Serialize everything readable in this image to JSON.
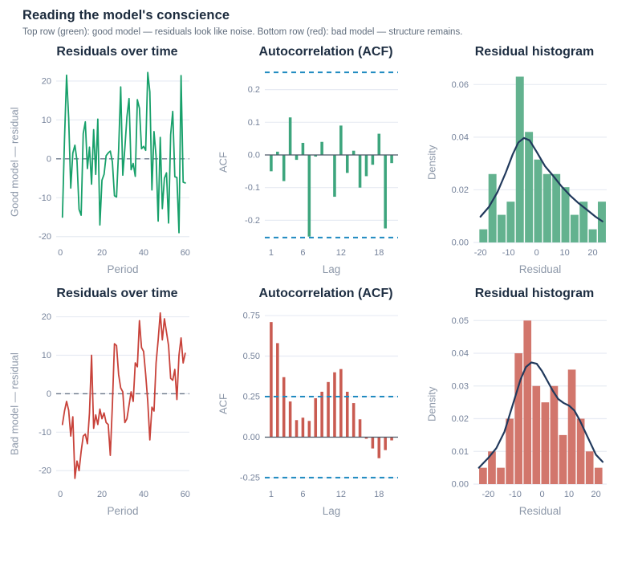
{
  "header": {
    "title": "Reading the model's conscience",
    "subtitle": "Top row (green): good model — residuals look like noise. Bottom row (red): bad model — structure remains."
  },
  "colors": {
    "title": "#1e2e42",
    "subtitle": "#5f6c7c",
    "grid": "#e7ebf3",
    "tick": "#76839b",
    "axis_label": "#8d98a9",
    "navy_curve": "#21395c",
    "blue_conf_dash": "#1f8ac0",
    "zero_dash_gray": "#6d7a8b",
    "zero_axis_solid": "#4d5866",
    "green_line": "#17a06a",
    "green_bar": "#3da57d",
    "green_hist": "#63b28f",
    "red_line": "#c8423a",
    "red_bar": "#c95b51",
    "red_hist": "#d2766c"
  },
  "chart_data": [
    {
      "id": "good-residuals-line",
      "type": "line",
      "title": "Residuals over time",
      "ylabel": "Good model — residual",
      "xlabel": "Period",
      "xlim": [
        -2,
        62
      ],
      "ylim": [
        -21.5,
        23.5
      ],
      "xticks": [
        {
          "v": 0,
          "label": "0"
        },
        {
          "v": 20,
          "label": "20"
        },
        {
          "v": 40,
          "label": "40"
        },
        {
          "v": 60,
          "label": "60"
        }
      ],
      "yticks": [
        {
          "v": -20,
          "label": "-20"
        },
        {
          "v": -10,
          "label": "-10"
        },
        {
          "v": 0,
          "label": "0"
        },
        {
          "v": 10,
          "label": "10"
        },
        {
          "v": 20,
          "label": "20"
        }
      ],
      "reflines": [
        {
          "y": 0,
          "color": "#6d7a8b",
          "dash": "6,5",
          "width": 1.4
        }
      ],
      "color_key": "green_line",
      "values": [
        -15,
        5,
        21.5,
        10.5,
        -7.5,
        1.5,
        3.5,
        -0.5,
        -13,
        -14.5,
        6.5,
        9.5,
        -2.5,
        3,
        -6.5,
        7.5,
        -4,
        10.2,
        -17,
        -5.5,
        -4,
        0.8,
        1.5,
        2,
        -0.8,
        -9.5,
        -9.8,
        2.2,
        18.5,
        -4.2,
        2.8,
        10.8,
        15.5,
        -2.8,
        -1.2,
        -4.5,
        15.2,
        13,
        2.6,
        3.2,
        2.2,
        22.2,
        17.2,
        -8,
        7,
        0.6,
        -16,
        5.5,
        -12.8,
        -5,
        -3.6,
        -16.5,
        6.2,
        12.2,
        -4.6,
        -4.8,
        -19,
        21.4,
        -6,
        -6.2
      ]
    },
    {
      "id": "good-acf",
      "type": "bar",
      "title": "Autocorrelation (ACF)",
      "ylabel": "ACF",
      "xlabel": "Lag",
      "xlim": [
        0,
        21
      ],
      "ylim": [
        -0.268,
        0.268
      ],
      "xticks": [
        {
          "v": 1,
          "label": "1"
        },
        {
          "v": 6,
          "label": "6"
        },
        {
          "v": 12,
          "label": "12"
        },
        {
          "v": 18,
          "label": "18"
        }
      ],
      "yticks": [
        {
          "v": -0.2,
          "label": "-0.2"
        },
        {
          "v": -0.1,
          "label": "-0.1"
        },
        {
          "v": 0,
          "label": "0.0"
        },
        {
          "v": 0.1,
          "label": "0.1"
        },
        {
          "v": 0.2,
          "label": "0.2"
        }
      ],
      "reflines": [
        {
          "y": 0.253,
          "color": "#1f8ac0",
          "dash": "6,5",
          "width": 2
        },
        {
          "y": -0.253,
          "color": "#1f8ac0",
          "dash": "6,5",
          "width": 2
        }
      ],
      "zero_axis": true,
      "color_key": "green_bar",
      "values": [
        -0.05,
        0.01,
        -0.08,
        0.115,
        -0.015,
        0.037,
        -0.25,
        -0.005,
        0.04,
        0.0,
        -0.128,
        0.09,
        -0.055,
        0.013,
        -0.1,
        -0.065,
        -0.03,
        0.065,
        -0.225,
        -0.025
      ]
    },
    {
      "id": "good-histogram",
      "type": "histogram",
      "title": "Residual histogram",
      "ylabel": "Density",
      "xlabel": "Residual",
      "xlim": [
        -22.5,
        25
      ],
      "ylim": [
        0,
        0.0665
      ],
      "xticks": [
        {
          "v": -20,
          "label": "-20"
        },
        {
          "v": -10,
          "label": "-10"
        },
        {
          "v": 0,
          "label": "0"
        },
        {
          "v": 10,
          "label": "10"
        },
        {
          "v": 20,
          "label": "20"
        }
      ],
      "yticks": [
        {
          "v": 0,
          "label": "0.00"
        },
        {
          "v": 0.02,
          "label": "0.02"
        },
        {
          "v": 0.04,
          "label": "0.04"
        },
        {
          "v": 0.06,
          "label": "0.06"
        }
      ],
      "bin_start": -20.6,
      "bin_width": 3.25,
      "color_key": "green_hist",
      "heights": [
        0.005,
        0.026,
        0.0105,
        0.0155,
        0.063,
        0.042,
        0.0315,
        0.026,
        0.026,
        0.021,
        0.0105,
        0.0155,
        0.005,
        0.0155
      ],
      "kde": {
        "x": [
          -20,
          -17,
          -14,
          -11,
          -8.5,
          -6.5,
          -4.5,
          -2.5,
          0,
          3,
          6,
          9,
          12,
          15,
          18,
          21,
          23.5
        ],
        "y": [
          0.0098,
          0.0135,
          0.019,
          0.0265,
          0.0335,
          0.038,
          0.0397,
          0.0388,
          0.0345,
          0.029,
          0.0252,
          0.0212,
          0.0178,
          0.0149,
          0.0124,
          0.0098,
          0.008
        ]
      }
    },
    {
      "id": "bad-residuals-line",
      "type": "line",
      "title": "Residuals over time",
      "ylabel": "Bad model — residual",
      "xlabel": "Period",
      "xlim": [
        -2,
        62
      ],
      "ylim": [
        -23.5,
        22
      ],
      "xticks": [
        {
          "v": 0,
          "label": "0"
        },
        {
          "v": 20,
          "label": "20"
        },
        {
          "v": 40,
          "label": "40"
        },
        {
          "v": 60,
          "label": "60"
        }
      ],
      "yticks": [
        {
          "v": -20,
          "label": "-20"
        },
        {
          "v": -10,
          "label": "-10"
        },
        {
          "v": 0,
          "label": "0"
        },
        {
          "v": 10,
          "label": "10"
        },
        {
          "v": 20,
          "label": "20"
        }
      ],
      "reflines": [
        {
          "y": 0,
          "color": "#6d7a8b",
          "dash": "6,5",
          "width": 1.4
        }
      ],
      "color_key": "red_line",
      "values": [
        -8,
        -4.5,
        -2,
        -4.3,
        -11,
        -6,
        -22,
        -17.5,
        -20,
        -15,
        -11,
        -10.5,
        -13,
        -5,
        10,
        -9,
        -5.5,
        -8,
        -4,
        -6.5,
        -5,
        -7.5,
        -8,
        -16,
        -3,
        13,
        12.5,
        5,
        1.5,
        0.5,
        -7.5,
        -6.5,
        -3,
        0.5,
        -2,
        8,
        7,
        19,
        12,
        11,
        5,
        -2,
        -12,
        -3.5,
        -4.5,
        8,
        14,
        21,
        14,
        19.5,
        16,
        12.5,
        4,
        3.5,
        6.3,
        -1.5,
        10,
        14.5,
        8,
        10.5
      ]
    },
    {
      "id": "bad-acf",
      "type": "bar",
      "title": "Autocorrelation (ACF)",
      "ylabel": "ACF",
      "xlabel": "Lag",
      "xlim": [
        0,
        21
      ],
      "ylim": [
        -0.29,
        0.79
      ],
      "xticks": [
        {
          "v": 1,
          "label": "1"
        },
        {
          "v": 6,
          "label": "6"
        },
        {
          "v": 12,
          "label": "12"
        },
        {
          "v": 18,
          "label": "18"
        }
      ],
      "yticks": [
        {
          "v": -0.25,
          "label": "-0.25"
        },
        {
          "v": 0,
          "label": "0.00"
        },
        {
          "v": 0.25,
          "label": "0.25"
        },
        {
          "v": 0.5,
          "label": "0.50"
        },
        {
          "v": 0.75,
          "label": "0.75"
        }
      ],
      "reflines": [
        {
          "y": 0.25,
          "color": "#1f8ac0",
          "dash": "6,5",
          "width": 2
        },
        {
          "y": -0.25,
          "color": "#1f8ac0",
          "dash": "6,5",
          "width": 2
        }
      ],
      "zero_axis": true,
      "color_key": "red_bar",
      "values": [
        0.71,
        0.58,
        0.37,
        0.22,
        0.105,
        0.12,
        0.1,
        0.24,
        0.28,
        0.34,
        0.4,
        0.42,
        0.28,
        0.21,
        0.11,
        -0.01,
        -0.07,
        -0.13,
        -0.08,
        -0.02
      ]
    },
    {
      "id": "bad-histogram",
      "type": "histogram",
      "title": "Residual histogram",
      "ylabel": "Density",
      "xlabel": "Residual",
      "xlim": [
        -25.5,
        24
      ],
      "ylim": [
        0,
        0.0535
      ],
      "xticks": [
        {
          "v": -20,
          "label": "-20"
        },
        {
          "v": -10,
          "label": "-10"
        },
        {
          "v": 0,
          "label": "0"
        },
        {
          "v": 10,
          "label": "10"
        },
        {
          "v": 20,
          "label": "20"
        }
      ],
      "yticks": [
        {
          "v": 0,
          "label": "0.00"
        },
        {
          "v": 0.01,
          "label": "0.01"
        },
        {
          "v": 0.02,
          "label": "0.02"
        },
        {
          "v": 0.03,
          "label": "0.03"
        },
        {
          "v": 0.04,
          "label": "0.04"
        },
        {
          "v": 0.05,
          "label": "0.05"
        }
      ],
      "bin_start": -23.6,
      "bin_width": 3.3,
      "color_key": "red_hist",
      "heights": [
        0.005,
        0.01,
        0.005,
        0.02,
        0.04,
        0.05,
        0.03,
        0.025,
        0.03,
        0.015,
        0.035,
        0.02,
        0.01,
        0.005
      ],
      "kde": {
        "x": [
          -23.5,
          -20,
          -17,
          -14,
          -11,
          -8,
          -6,
          -4,
          -2,
          0,
          2,
          4,
          6,
          8,
          10,
          12,
          14,
          16,
          18,
          20,
          22.5
        ],
        "y": [
          0.005,
          0.008,
          0.011,
          0.016,
          0.024,
          0.032,
          0.0358,
          0.0372,
          0.0368,
          0.0345,
          0.0315,
          0.0285,
          0.026,
          0.0248,
          0.024,
          0.0225,
          0.0195,
          0.016,
          0.0125,
          0.009,
          0.0068
        ]
      }
    }
  ]
}
